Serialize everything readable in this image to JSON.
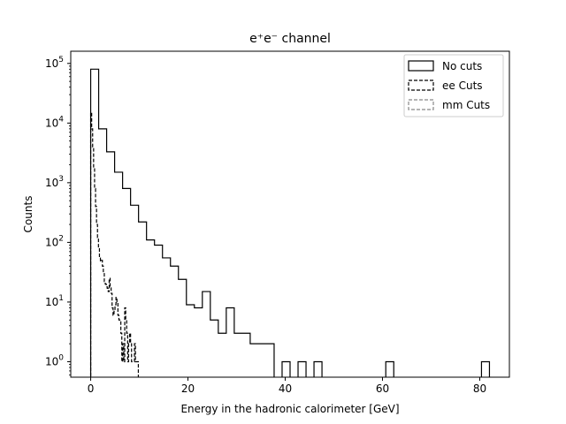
{
  "chart_data": {
    "type": "step-histogram",
    "title": "e⁺e⁻ channel",
    "xlabel": "Energy in the hadronic calorimeter [GeV]",
    "ylabel": "Counts",
    "xlim": [
      -4.1,
      86.1
    ],
    "ylim": [
      0.55,
      160000
    ],
    "yscale": "log",
    "grid": false,
    "legend_position": "top-right",
    "x_ticks": [
      0,
      20,
      40,
      60,
      80
    ],
    "x_tick_labels": [
      "0",
      "20",
      "40",
      "60",
      "80"
    ],
    "y_ticks": [
      1,
      10,
      100,
      1000,
      10000,
      100000
    ],
    "y_tick_labels": [
      {
        "base": "10",
        "exp": "0"
      },
      {
        "base": "10",
        "exp": "1"
      },
      {
        "base": "10",
        "exp": "2"
      },
      {
        "base": "10",
        "exp": "3"
      },
      {
        "base": "10",
        "exp": "4"
      },
      {
        "base": "10",
        "exp": "5"
      }
    ],
    "series": [
      {
        "name": "No cuts",
        "color": "#000000",
        "dash": "solid",
        "bin_edges": [
          0,
          1.64,
          3.28,
          4.92,
          6.56,
          8.2,
          9.84,
          11.48,
          13.12,
          14.76,
          16.4,
          18.04,
          19.68,
          21.32,
          22.96,
          24.6,
          26.24,
          27.88,
          29.52,
          31.16,
          32.8,
          34.44,
          36.08,
          37.72,
          39.36,
          41.0,
          42.64,
          44.28,
          45.92,
          47.56,
          49.2,
          50.84,
          52.48,
          54.12,
          55.76,
          57.4,
          59.04,
          60.68,
          62.32,
          63.96,
          65.6,
          67.24,
          68.88,
          70.52,
          72.16,
          73.8,
          75.44,
          77.08,
          78.72,
          80.36,
          82.0
        ],
        "counts": [
          80000,
          8000,
          3300,
          1500,
          800,
          420,
          220,
          110,
          90,
          55,
          40,
          24,
          9,
          8,
          15,
          5,
          3,
          8,
          3,
          3,
          2,
          2,
          2,
          0,
          1,
          0,
          1,
          0,
          1,
          0,
          0,
          0,
          0,
          0,
          0,
          0,
          0,
          1,
          0,
          0,
          0,
          0,
          0,
          0,
          0,
          0,
          0,
          0,
          0,
          1
        ]
      },
      {
        "name": "ee Cuts",
        "color": "#000000",
        "dash": "dashed",
        "bin_edges": [
          0,
          0.2,
          0.4,
          0.6,
          0.8,
          1.0,
          1.2,
          1.4,
          1.6,
          1.8,
          2.0,
          2.2,
          2.4,
          2.6,
          2.8,
          3.0,
          3.2,
          3.4,
          3.6,
          3.8,
          4.0,
          4.2,
          4.4,
          4.6,
          4.8,
          5.0,
          5.2,
          5.4,
          5.6,
          5.8,
          6.0,
          6.2,
          6.4,
          6.6,
          6.8,
          7.0,
          7.2,
          7.4,
          7.6,
          7.8,
          8.0,
          8.2,
          8.4,
          8.6,
          8.8,
          9.0,
          9.2,
          9.4,
          9.6,
          9.8,
          10.0
        ],
        "counts": [
          15000,
          8000,
          4000,
          1800,
          800,
          400,
          200,
          120,
          80,
          55,
          48,
          50,
          40,
          30,
          22,
          20,
          18,
          17,
          15,
          25,
          18,
          14,
          8,
          6,
          7,
          9,
          12,
          10,
          6,
          5,
          5,
          3,
          1,
          2,
          1,
          8,
          5,
          3,
          1,
          2,
          3,
          2,
          1,
          1,
          1,
          2,
          1,
          1,
          1,
          0
        ]
      },
      {
        "name": "mm Cuts",
        "color": "#888888",
        "dash": "dashed",
        "bin_edges": [],
        "counts": []
      }
    ]
  }
}
